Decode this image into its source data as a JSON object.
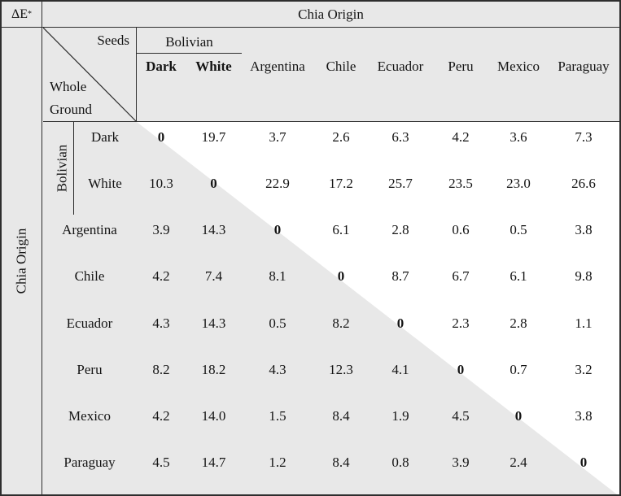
{
  "corner": {
    "base": "ΔE",
    "sup": "*"
  },
  "top_header": "Chia Origin",
  "left_header": "Chia Origin",
  "diagonal_cell": {
    "top_right": "Seeds",
    "bottom_left_line1": "Whole",
    "bottom_left_line2": "Ground"
  },
  "seed_group_label": "Bolivian",
  "row_group_label": "Bolivian",
  "columns": [
    "Dark",
    "White",
    "Argentina",
    "Chile",
    "Ecuador",
    "Peru",
    "Mexico",
    "Paraguay"
  ],
  "rows": [
    {
      "label": "Dark",
      "group": "Bolivian",
      "values": [
        "0",
        "19.7",
        "3.7",
        "2.6",
        "6.3",
        "4.2",
        "3.6",
        "7.3"
      ]
    },
    {
      "label": "White",
      "group": "Bolivian",
      "values": [
        "10.3",
        "0",
        "22.9",
        "17.2",
        "25.7",
        "23.5",
        "23.0",
        "26.6"
      ]
    },
    {
      "label": "Argentina",
      "values": [
        "3.9",
        "14.3",
        "0",
        "6.1",
        "2.8",
        "0.6",
        "0.5",
        "3.8"
      ]
    },
    {
      "label": "Chile",
      "values": [
        "4.2",
        "7.4",
        "8.1",
        "0",
        "8.7",
        "6.7",
        "6.1",
        "9.8"
      ]
    },
    {
      "label": "Ecuador",
      "values": [
        "4.3",
        "14.3",
        "0.5",
        "8.2",
        "0",
        "2.3",
        "2.8",
        "1.1"
      ]
    },
    {
      "label": "Peru",
      "values": [
        "8.2",
        "18.2",
        "4.3",
        "12.3",
        "4.1",
        "0",
        "0.7",
        "3.2"
      ]
    },
    {
      "label": "Mexico",
      "values": [
        "4.2",
        "14.0",
        "1.5",
        "8.4",
        "1.9",
        "4.5",
        "0",
        "3.8"
      ]
    },
    {
      "label": "Paraguay",
      "values": [
        "4.5",
        "14.7",
        "1.2",
        "8.4",
        "0.8",
        "3.9",
        "2.4",
        "0"
      ]
    }
  ],
  "colors": {
    "shade": "#e8e8e8",
    "line": "#2e2e2e",
    "text": "#141414",
    "cell_background": "#ffffff"
  },
  "chart_data": {
    "type": "table",
    "title": "ΔE* between Chia Origins (whole/ground seeds)",
    "row_axis_label": "Chia Origin",
    "column_axis_label": "Chia Origin",
    "diagonal_labels": [
      "Seeds",
      "Whole",
      "Ground"
    ],
    "group": "Bolivian",
    "columns": [
      "Bolivian Dark",
      "Bolivian White",
      "Argentina",
      "Chile",
      "Ecuador",
      "Peru",
      "Mexico",
      "Paraguay"
    ],
    "rows": [
      "Bolivian Dark",
      "Bolivian White",
      "Argentina",
      "Chile",
      "Ecuador",
      "Peru",
      "Mexico",
      "Paraguay"
    ],
    "values": [
      [
        0,
        19.7,
        3.7,
        2.6,
        6.3,
        4.2,
        3.6,
        7.3
      ],
      [
        10.3,
        0,
        22.9,
        17.2,
        25.7,
        23.5,
        23.0,
        26.6
      ],
      [
        3.9,
        14.3,
        0,
        6.1,
        2.8,
        0.6,
        0.5,
        3.8
      ],
      [
        4.2,
        7.4,
        8.1,
        0,
        8.7,
        6.7,
        6.1,
        9.8
      ],
      [
        4.3,
        14.3,
        0.5,
        8.2,
        0,
        2.3,
        2.8,
        1.1
      ],
      [
        8.2,
        18.2,
        4.3,
        12.3,
        4.1,
        0,
        0.7,
        3.2
      ],
      [
        4.2,
        14.0,
        1.5,
        8.4,
        1.9,
        4.5,
        0,
        3.8
      ],
      [
        4.5,
        14.7,
        1.2,
        8.4,
        0.8,
        3.9,
        2.4,
        0
      ]
    ]
  }
}
